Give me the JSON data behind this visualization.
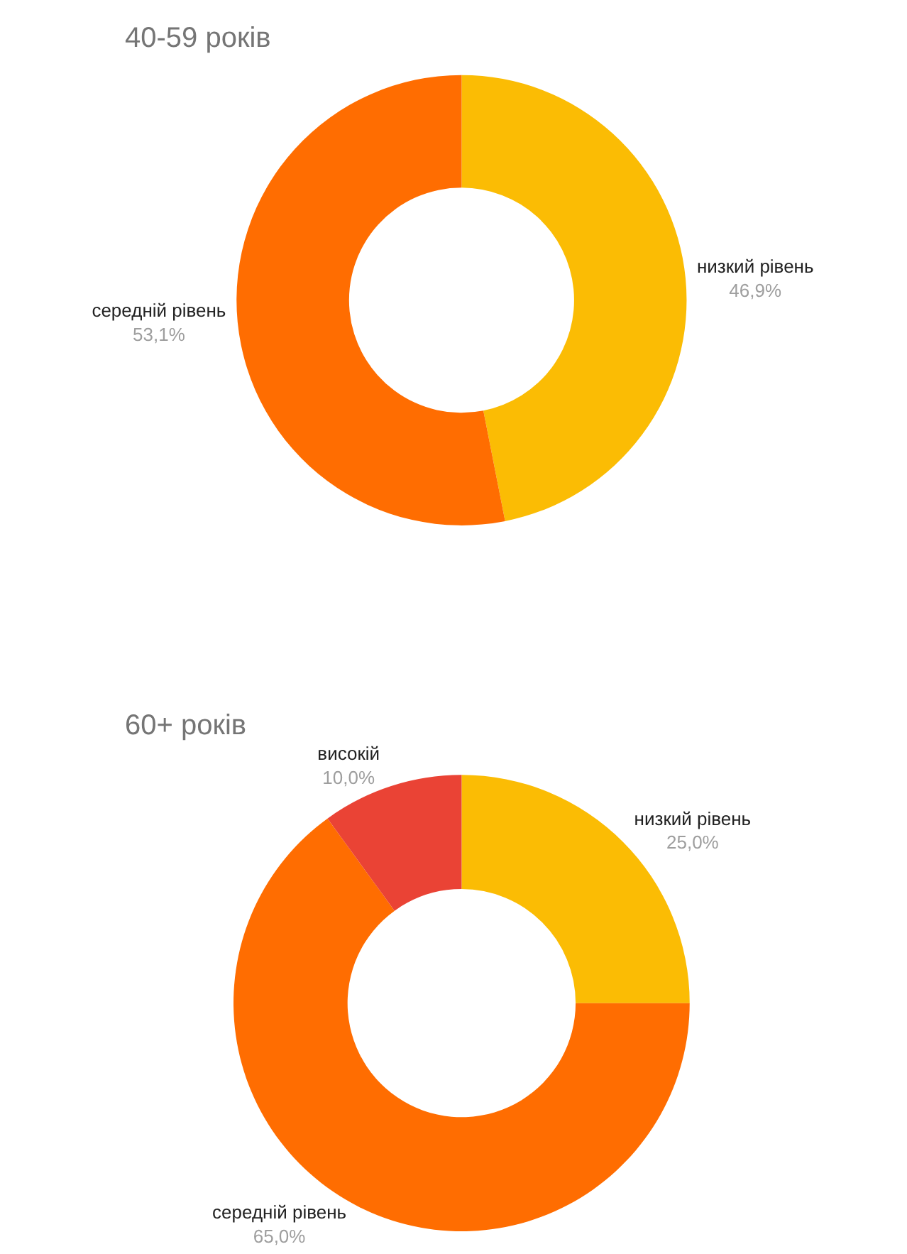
{
  "chart_data": [
    {
      "type": "donut",
      "title": "40-59 років",
      "categories": [
        "низкий рівень",
        "середній рівень"
      ],
      "values": [
        46.9,
        53.1
      ],
      "value_labels": [
        "46,9%",
        "53,1%"
      ],
      "colors": [
        "#fbbc04",
        "#ff6d01"
      ],
      "legend": false
    },
    {
      "type": "donut",
      "title": "60+ років",
      "categories": [
        "низкий рівень",
        "середній рівень",
        "високій"
      ],
      "values": [
        25.0,
        65.0,
        10.0
      ],
      "value_labels": [
        "25,0%",
        "65,0%",
        "10,0%"
      ],
      "colors": [
        "#fbbc04",
        "#ff6d01",
        "#ea4335"
      ],
      "legend": false
    }
  ]
}
